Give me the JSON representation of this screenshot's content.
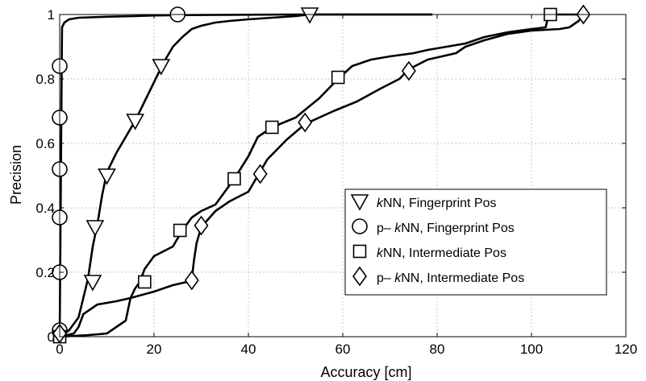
{
  "chart_data": {
    "type": "line",
    "title": "",
    "xlabel": "Accuracy [cm]",
    "ylabel": "Precision",
    "xlim": [
      0,
      120
    ],
    "ylim": [
      0,
      1
    ],
    "xticks": [
      0,
      20,
      40,
      60,
      80,
      100,
      120
    ],
    "yticks": [
      0,
      0.2,
      0.4,
      0.6,
      0.8,
      1
    ],
    "xtick_labels": [
      "0",
      "20",
      "40",
      "60",
      "80",
      "100",
      "120"
    ],
    "ytick_labels": [
      "0",
      "0.2",
      "0.4",
      "0.6",
      "0.8",
      "1"
    ],
    "grid": true,
    "legend_position": "lower-right",
    "series": [
      {
        "name": "kNN, Fingerprint Pos",
        "name_italic": "k",
        "name_rest": "NN, Fingerprint Pos",
        "marker": "triangle-down",
        "x": [
          0,
          2,
          4,
          5,
          6,
          7,
          8,
          9,
          10,
          12,
          14,
          16,
          18,
          20,
          22,
          24,
          26,
          28,
          30,
          33,
          36,
          40,
          45,
          50,
          53,
          55,
          60,
          65,
          70,
          75,
          79
        ],
        "y": [
          0,
          0.02,
          0.06,
          0.12,
          0.18,
          0.28,
          0.35,
          0.44,
          0.51,
          0.57,
          0.62,
          0.67,
          0.73,
          0.79,
          0.85,
          0.9,
          0.93,
          0.955,
          0.965,
          0.975,
          0.98,
          0.985,
          0.99,
          0.995,
          1,
          1,
          1,
          1,
          1,
          1,
          1
        ],
        "marker_points": [
          [
            7,
            0.17
          ],
          [
            7.5,
            0.34
          ],
          [
            10,
            0.5
          ],
          [
            16,
            0.67
          ],
          [
            21.5,
            0.84
          ],
          [
            53,
            1
          ]
        ]
      },
      {
        "name": "p– kNN, Fingerprint Pos",
        "name_prefix": "p– ",
        "name_italic": "k",
        "name_rest": "NN, Fingerprint Pos",
        "marker": "circle",
        "x": [
          0,
          0.5,
          1,
          2,
          4,
          8,
          12,
          16,
          20,
          25,
          35,
          50,
          60,
          70,
          79
        ],
        "y": [
          0,
          0.96,
          0.975,
          0.985,
          0.99,
          0.992,
          0.994,
          0.995,
          0.997,
          0.998,
          0.999,
          1,
          1,
          1,
          1
        ],
        "marker_points": [
          [
            0,
            0.02
          ],
          [
            0,
            0.2
          ],
          [
            0,
            0.37
          ],
          [
            0,
            0.52
          ],
          [
            0,
            0.68
          ],
          [
            0,
            0.84
          ],
          [
            25,
            1
          ]
        ]
      },
      {
        "name": "kNN, Intermediate Pos",
        "name_italic": "k",
        "name_rest": "NN, Intermediate Pos",
        "marker": "square",
        "x": [
          0,
          3,
          4,
          5,
          8,
          12,
          15,
          16,
          17,
          18,
          20,
          24,
          26,
          28,
          30,
          33,
          35,
          37,
          40,
          42,
          45,
          50,
          55,
          59,
          62,
          66,
          70,
          75,
          78,
          82,
          86,
          90,
          95,
          100,
          103,
          103.5,
          104,
          106,
          110,
          111
        ],
        "y": [
          0,
          0.01,
          0.03,
          0.07,
          0.1,
          0.11,
          0.12,
          0.15,
          0.17,
          0.21,
          0.25,
          0.28,
          0.33,
          0.37,
          0.39,
          0.41,
          0.45,
          0.49,
          0.56,
          0.62,
          0.65,
          0.68,
          0.74,
          0.8,
          0.84,
          0.86,
          0.87,
          0.88,
          0.89,
          0.9,
          0.91,
          0.93,
          0.945,
          0.955,
          0.96,
          0.99,
          1,
          1,
          1,
          1
        ],
        "marker_points": [
          [
            0,
            0
          ],
          [
            18,
            0.17
          ],
          [
            25.5,
            0.33
          ],
          [
            37,
            0.49
          ],
          [
            45,
            0.65
          ],
          [
            59,
            0.805
          ],
          [
            104,
            1
          ]
        ]
      },
      {
        "name": "p– kNN, Intermediate Pos",
        "name_prefix": "p– ",
        "name_italic": "k",
        "name_rest": "NN, Intermediate Pos",
        "marker": "diamond",
        "x": [
          0,
          6,
          10,
          14,
          15,
          20,
          24,
          27,
          28,
          28.5,
          29,
          30,
          33,
          36,
          40,
          42,
          44,
          48,
          52,
          58,
          63,
          68,
          72,
          74,
          78,
          84,
          86,
          90,
          95,
          100,
          106,
          108,
          110,
          111
        ],
        "y": [
          0,
          0.005,
          0.01,
          0.05,
          0.12,
          0.14,
          0.16,
          0.17,
          0.18,
          0.24,
          0.29,
          0.34,
          0.39,
          0.42,
          0.45,
          0.5,
          0.55,
          0.61,
          0.66,
          0.7,
          0.73,
          0.77,
          0.8,
          0.83,
          0.86,
          0.88,
          0.9,
          0.92,
          0.94,
          0.95,
          0.955,
          0.96,
          0.98,
          1
        ],
        "marker_points": [
          [
            0,
            0.01
          ],
          [
            28,
            0.175
          ],
          [
            30,
            0.345
          ],
          [
            42.5,
            0.505
          ],
          [
            52,
            0.665
          ],
          [
            74,
            0.825
          ],
          [
            111,
            1
          ]
        ]
      }
    ]
  }
}
